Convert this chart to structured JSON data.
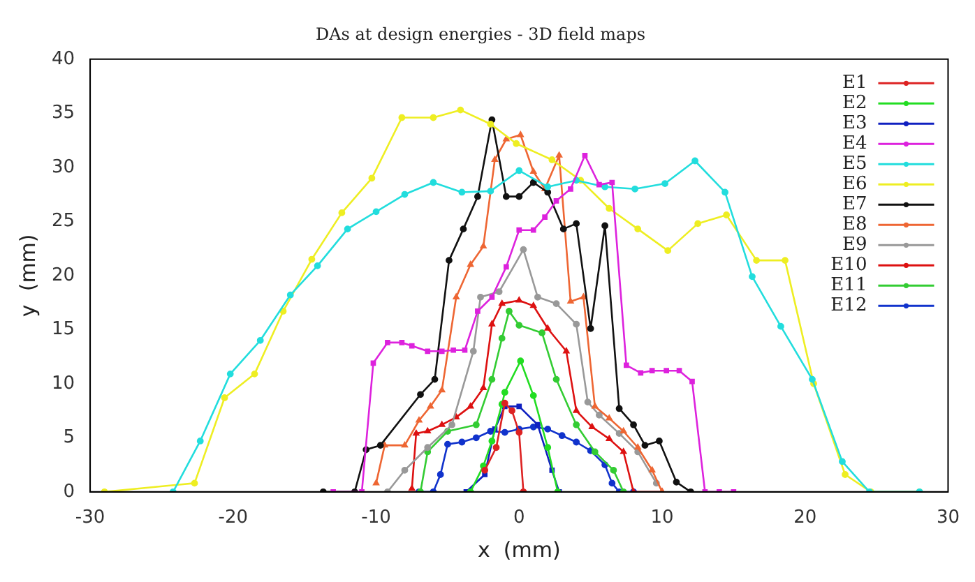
{
  "chart_data": {
    "type": "line",
    "title": "DAs at design energies - 3D field maps",
    "xlabel": "x  (mm)",
    "ylabel": "y  (mm)",
    "xlim": [
      -30,
      30
    ],
    "xticks": [
      -30,
      -20,
      -10,
      0,
      10,
      20,
      30
    ],
    "ylim": [
      0,
      40
    ],
    "yticks": [
      0,
      5,
      10,
      15,
      20,
      25,
      30,
      35,
      40
    ],
    "grid": false,
    "legend": "top right",
    "marker": "circle",
    "series": [
      {
        "name": "E1",
        "color": "#dd2222",
        "x": [
          -2.4,
          -1.6,
          -1,
          -0.5,
          0,
          0.3
        ],
        "values": [
          2,
          4.1,
          8.2,
          7.5,
          5.5,
          0
        ]
      },
      {
        "name": "E2",
        "color": "#22dd22",
        "x": [
          -3.4,
          -2.5,
          -1.9,
          -1.2,
          -1,
          0.1,
          1,
          2,
          2.7
        ],
        "values": [
          0,
          2.4,
          4.7,
          8.1,
          9.2,
          12.1,
          8.9,
          4.1,
          0
        ]
      },
      {
        "name": "E3",
        "color": "#1020c0",
        "marker": "square",
        "x": [
          -3.7,
          -2.4,
          -1.7,
          -1,
          0,
          1.3,
          2.3,
          2.8
        ],
        "values": [
          0,
          1.6,
          5.8,
          7.9,
          7.9,
          6.2,
          2,
          0
        ]
      },
      {
        "name": "E4",
        "color": "#dd22dd",
        "marker": "square",
        "x": [
          -13,
          -11,
          -10.2,
          -9.2,
          -8.2,
          -7.5,
          -6.4,
          -5.4,
          -4.6,
          -3.8,
          -2.9,
          -1.9,
          -0.9,
          0,
          1,
          1.8,
          2.6,
          3.6,
          4.6,
          5.6,
          6.5,
          7.5,
          8.5,
          9.3,
          10.3,
          11.2,
          12.1,
          13,
          14,
          15
        ],
        "values": [
          0,
          0,
          11.9,
          13.8,
          13.8,
          13.5,
          13,
          13,
          13.1,
          13.1,
          16.7,
          18,
          20.8,
          24.2,
          24.2,
          25.4,
          26.9,
          28,
          31.1,
          28.4,
          28.6,
          11.7,
          11,
          11.2,
          11.2,
          11.2,
          10.2,
          0,
          0,
          0
        ]
      },
      {
        "name": "E5",
        "color": "#22dddd",
        "x": [
          -24.2,
          -22.3,
          -20.2,
          -18.1,
          -16,
          -14.1,
          -12,
          -10,
          -8,
          -6,
          -4,
          -2,
          0,
          2,
          4,
          6,
          8.1,
          10.2,
          12.3,
          14.4,
          16.3,
          18.3,
          20.5,
          22.6,
          24.5,
          28
        ],
        "values": [
          0,
          4.7,
          10.9,
          14,
          18.2,
          20.9,
          24.3,
          25.9,
          27.5,
          28.6,
          27.7,
          27.8,
          29.7,
          28.2,
          28.8,
          28.2,
          28,
          28.5,
          30.6,
          27.7,
          19.9,
          15.3,
          10.4,
          2.8,
          0,
          0
        ]
      },
      {
        "name": "E6",
        "color": "#eeee22",
        "x": [
          -29,
          -22.7,
          -20.6,
          -18.5,
          -16.5,
          -14.5,
          -12.4,
          -10.3,
          -8.2,
          -6,
          -4.1,
          -2,
          -0.2,
          2.3,
          4.3,
          6.3,
          8.3,
          10.4,
          12.5,
          14.5,
          16.6,
          18.6,
          20.6,
          22.8,
          24.6,
          28
        ],
        "values": [
          0,
          0.8,
          8.7,
          10.9,
          16.7,
          21.5,
          25.8,
          29,
          34.6,
          34.6,
          35.3,
          34,
          32.2,
          30.7,
          28.8,
          26.2,
          24.3,
          22.3,
          24.8,
          25.6,
          21.4,
          21.4,
          10,
          1.6,
          0,
          0
        ]
      },
      {
        "name": "E7",
        "color": "#111111",
        "x": [
          -13.7,
          -11.5,
          -10.7,
          -9.7,
          -6.9,
          -5.9,
          -4.9,
          -3.9,
          -2.9,
          -1.9,
          -0.9,
          0,
          1,
          2,
          3.1,
          4,
          5,
          6,
          7,
          8,
          8.8,
          9.8,
          11,
          12
        ],
        "values": [
          0,
          0,
          3.9,
          4.3,
          9,
          10.4,
          21.4,
          24.3,
          27.3,
          34.4,
          27.3,
          27.3,
          28.6,
          27.7,
          24.3,
          24.8,
          15.1,
          24.6,
          7.7,
          6.2,
          4.3,
          4.7,
          0.9,
          0
        ]
      },
      {
        "name": "E8",
        "color": "#ee6633",
        "marker": "triangle",
        "x": [
          -10,
          -9.4,
          -8,
          -7,
          -6.2,
          -5.4,
          -4.4,
          -3.4,
          -2.5,
          -1.7,
          -0.9,
          0.1,
          1,
          1.8,
          2.8,
          3.6,
          4.5,
          5.3,
          6.3,
          7.3,
          8.3,
          9.3,
          10
        ],
        "values": [
          0.8,
          4.3,
          4.3,
          6.6,
          7.9,
          9.4,
          18,
          21,
          22.7,
          30.7,
          32.6,
          33,
          29.6,
          28,
          31.1,
          17.6,
          18,
          7.9,
          6.8,
          5.6,
          4.1,
          2,
          0
        ]
      },
      {
        "name": "E9",
        "color": "#999999",
        "x": [
          -9.2,
          -8,
          -6.4,
          -4.7,
          -3.2,
          -2.7,
          -1.4,
          0.3,
          1.3,
          2.6,
          4,
          4.8,
          5.6,
          7,
          8.3,
          9.6
        ],
        "values": [
          0,
          2,
          4.1,
          6.2,
          13,
          18,
          18.5,
          22.4,
          18,
          17.4,
          15.5,
          8.3,
          7.1,
          5.4,
          3.7,
          0.8
        ]
      },
      {
        "name": "E10",
        "color": "#dd1111",
        "marker": "triangle",
        "x": [
          -7.5,
          -7.2,
          -6.4,
          -5.4,
          -4.4,
          -3.4,
          -2.5,
          -1.9,
          -1.2,
          0,
          1,
          2,
          3.3,
          4,
          5.1,
          6.3,
          7.3,
          8,
          10
        ],
        "values": [
          0.3,
          5.4,
          5.6,
          6.2,
          6.9,
          7.9,
          9.6,
          15.5,
          17.4,
          17.7,
          17.2,
          15.1,
          13,
          7.5,
          6,
          4.9,
          3.7,
          0,
          0
        ]
      },
      {
        "name": "E11",
        "color": "#33cc33",
        "x": [
          -6.9,
          -6.4,
          -5,
          -3,
          -1.9,
          -1.2,
          -0.7,
          0,
          1.6,
          2.6,
          4,
          5.3,
          6.6,
          7.3
        ],
        "values": [
          0,
          3.7,
          5.6,
          6.2,
          10.4,
          14.2,
          16.7,
          15.4,
          14.7,
          10.4,
          6.2,
          3.7,
          2,
          0
        ]
      },
      {
        "name": "E12",
        "color": "#1133cc",
        "x": [
          -7,
          -6,
          -5.5,
          -5,
          -4,
          -3,
          -2,
          -1,
          0,
          1,
          2,
          3,
          4,
          5,
          6,
          6.5,
          7,
          8
        ],
        "values": [
          0,
          0,
          1.6,
          4.4,
          4.6,
          5,
          5.6,
          5.5,
          5.8,
          6,
          5.8,
          5.2,
          4.6,
          3.8,
          2.5,
          0.8,
          0,
          0
        ]
      }
    ]
  }
}
